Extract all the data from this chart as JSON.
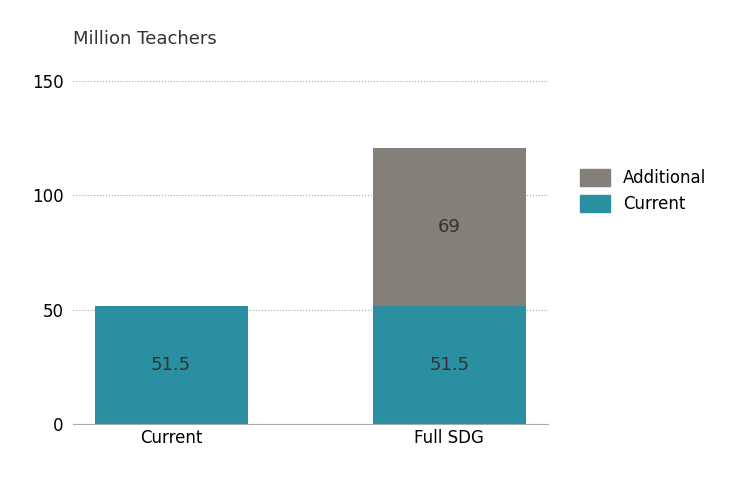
{
  "categories": [
    "Current",
    "Full SDG"
  ],
  "current_values": [
    51.5,
    51.5
  ],
  "additional_values": [
    0,
    69
  ],
  "current_color": "#2a8fa0",
  "additional_color": "#857f7a",
  "title": "Million Teachers",
  "ylim": [
    0,
    160
  ],
  "yticks": [
    0,
    50,
    100,
    150
  ],
  "bar_width": 0.55,
  "label_current": "Current",
  "label_additional": "Additional",
  "text_color": "#333333",
  "annotation_color": "#333333",
  "label_fontsize": 12,
  "title_fontsize": 13,
  "tick_fontsize": 12,
  "annotation_fontsize": 13,
  "background_color": "#ffffff"
}
